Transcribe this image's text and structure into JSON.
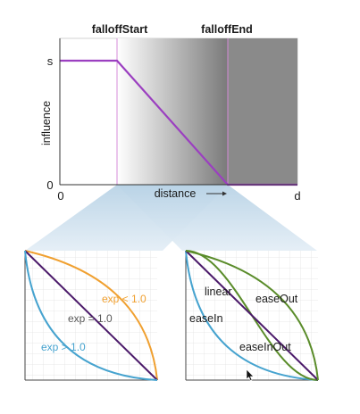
{
  "top": {
    "falloff_start": "falloffStart",
    "falloff_end": "falloffEnd",
    "y_axis_label": "influence",
    "y_tick_top": "s",
    "y_tick_bottom": "0",
    "x_tick_left": "0",
    "x_tick_right": "d",
    "x_axis_label": "distance",
    "colors": {
      "curve": "#9b3fc0",
      "marker": "#d68bd8",
      "dark_region": "#8a8a8a",
      "projection": "#c7dcea"
    }
  },
  "bottom_left": {
    "labels": {
      "exp_lt": "exp < 1.0",
      "exp_eq": "exp = 1.0",
      "exp_gt": "exp > 1.0"
    },
    "colors": {
      "lt": "#f0a030",
      "eq": "#4b1a6a",
      "gt": "#46a3cf",
      "grid": "#e2e2e2"
    }
  },
  "bottom_right": {
    "labels": {
      "linear": "linear",
      "ease_out": "easeOut",
      "ease_in": "easeIn",
      "ease_in_out": "easeInOut"
    },
    "colors": {
      "ease_out": "#5a8c2a",
      "linear": "#4b1a6a",
      "ease_in": "#46a3cf",
      "ease_in_out": "#5a8c2a"
    }
  }
}
